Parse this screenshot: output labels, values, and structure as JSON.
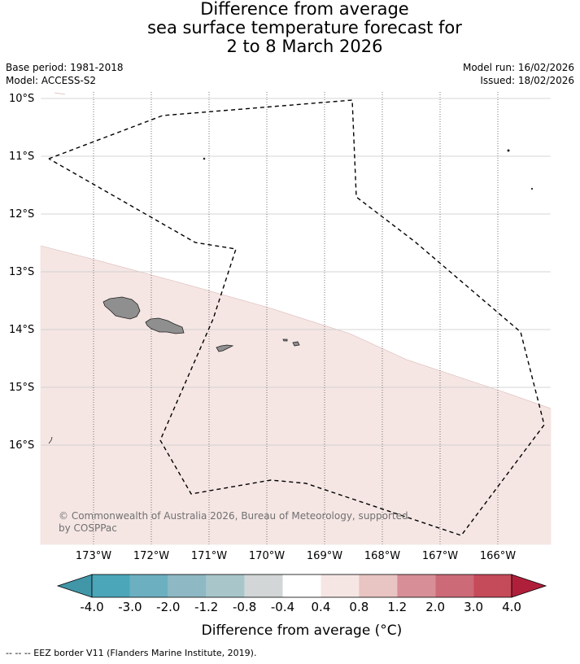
{
  "title": {
    "line1": "Difference from average",
    "line2": "sea surface temperature forecast for",
    "line3": "2 to 8 March 2026"
  },
  "meta": {
    "base_period": "Base period: 1981-2018",
    "model": "Model: ACCESS-S2",
    "model_run": "Model run: 16/02/2026",
    "issued": "Issued: 18/02/2026"
  },
  "map": {
    "lat_labels": [
      "10°S",
      "11°S",
      "12°S",
      "13°S",
      "14°S",
      "15°S",
      "16°S"
    ],
    "lon_labels": [
      "173°W",
      "172°W",
      "171°W",
      "170°W",
      "169°W",
      "168°W",
      "167°W",
      "166°W"
    ],
    "copyright": [
      "© Commonwealth of Australia 2026, Bureau of Meteorology, supported",
      "by COSPPac"
    ],
    "colors": {
      "anomaly_fill": "#f5e6e4",
      "land": "#8f8f8f",
      "eez_line": "#000000"
    }
  },
  "colorbar": {
    "tick_labels": [
      "-4.0",
      "-3.0",
      "-2.0",
      "-1.2",
      "-0.8",
      "-0.4",
      "0.4",
      "0.8",
      "1.2",
      "2.0",
      "3.0",
      "4.0"
    ],
    "colors": [
      "#4196a8",
      "#4aa6b8",
      "#6cafc0",
      "#8eb8c3",
      "#a8c6ca",
      "#d2d6d6",
      "#ffffff",
      "#f5e6e4",
      "#e8c4c2",
      "#d88e97",
      "#cc6a77",
      "#c54a5a",
      "#b01f3a"
    ],
    "label": "Difference from average (°C)"
  },
  "footnote": "-- -- -- EEZ border V11 (Flanders Marine Institute, 2019)."
}
